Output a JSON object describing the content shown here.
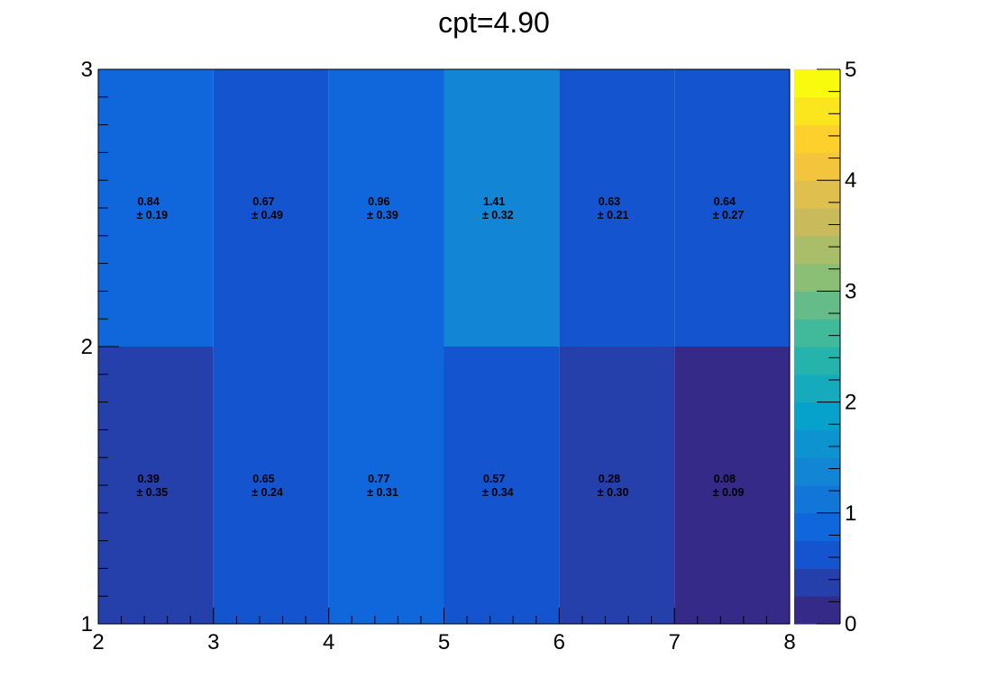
{
  "chart_data": {
    "type": "heatmap",
    "title": "cpt=4.90",
    "xlabel": "",
    "ylabel": "",
    "x_bin_edges": [
      2,
      3,
      4,
      5,
      6,
      7,
      8
    ],
    "y_bin_edges": [
      1,
      2,
      3
    ],
    "xlim": [
      2,
      8
    ],
    "ylim": [
      1,
      3
    ],
    "x_ticks": [
      "2",
      "3",
      "4",
      "5",
      "6",
      "7",
      "8"
    ],
    "y_ticks": [
      "1",
      "2",
      "3"
    ],
    "colorbar": {
      "range": [
        0,
        5
      ],
      "ticks": [
        "0",
        "1",
        "2",
        "3",
        "4",
        "5"
      ],
      "palette": "kBird"
    },
    "cells": [
      [
        {
          "value": 0.39,
          "error": 0.35,
          "label": "0.39",
          "error_label": "± 0.35"
        },
        {
          "value": 0.65,
          "error": 0.24,
          "label": "0.65",
          "error_label": "± 0.24"
        },
        {
          "value": 0.77,
          "error": 0.31,
          "label": "0.77",
          "error_label": "± 0.31"
        },
        {
          "value": 0.57,
          "error": 0.34,
          "label": "0.57",
          "error_label": "± 0.34"
        },
        {
          "value": 0.28,
          "error": 0.3,
          "label": "0.28",
          "error_label": "± 0.30"
        },
        {
          "value": 0.08,
          "error": 0.09,
          "label": "0.08",
          "error_label": "± 0.09"
        }
      ],
      [
        {
          "value": 0.84,
          "error": 0.19,
          "label": "0.84",
          "error_label": "± 0.19"
        },
        {
          "value": 0.67,
          "error": 0.49,
          "label": "0.67",
          "error_label": "± 0.49"
        },
        {
          "value": 0.96,
          "error": 0.39,
          "label": "0.96",
          "error_label": "± 0.39"
        },
        {
          "value": 1.41,
          "error": 0.32,
          "label": "1.41",
          "error_label": "± 0.32"
        },
        {
          "value": 0.63,
          "error": 0.21,
          "label": "0.63",
          "error_label": "± 0.21"
        },
        {
          "value": 0.64,
          "error": 0.27,
          "label": "0.64",
          "error_label": "± 0.27"
        }
      ]
    ],
    "grid": false,
    "legend": "colorbar-right"
  }
}
